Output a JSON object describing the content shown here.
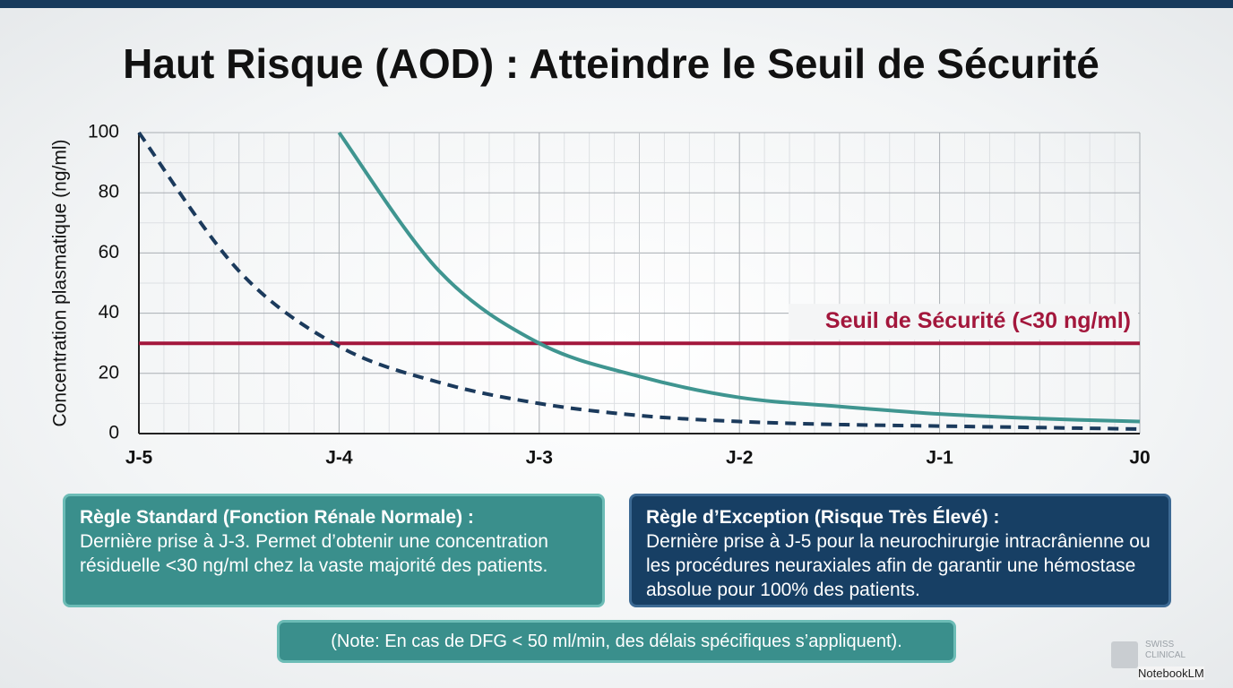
{
  "chart_data": {
    "type": "line",
    "title": "Haut Risque (AOD) : Atteindre le Seuil de Sécurité",
    "y_label": "Concentration plasmatique (ng/ml)",
    "categories": [
      "J-5",
      null,
      "J-4",
      null,
      "J-3",
      null,
      "J-2",
      null,
      "J-1",
      null,
      "J0"
    ],
    "series": [
      {
        "color": "#1b3a5c",
        "line_style": "dashed",
        "values": [
          100,
          54,
          29,
          17,
          10,
          6,
          4,
          3,
          2.5,
          2,
          1.5
        ]
      },
      {
        "color": "#3f9590",
        "line_style": "solid",
        "values": [
          null,
          null,
          100,
          54,
          30,
          19,
          12,
          9,
          6.5,
          5,
          4
        ]
      }
    ],
    "threshold": {
      "value": 30,
      "label": "Seuil de Sécurité (<30 ng/ml)",
      "color": "#a3173c"
    },
    "ylim": [
      0,
      100
    ],
    "yticks": [
      0,
      20,
      40,
      60,
      80,
      100
    ],
    "grid": true
  },
  "boxes": [
    {
      "title": "Règle Standard (Fonction Rénale Normale) :",
      "text": "Dernière prise à J-3. Permet d’obtenir une concentration résiduelle <30 ng/ml chez la vaste majorité des patients."
    },
    {
      "title": "Règle d’Exception (Risque Très Élevé) :",
      "text": "Dernière prise à J-5 pour la neurochirurgie intracrânienne ou les procédures neuraxiales afin de garantir une hémostase absolue pour 100% des patients."
    }
  ],
  "note": "(Note: En cas de DFG < 50 ml/min, des délais spécifiques s’appliquent).",
  "watermark": {
    "line1": "SWISS",
    "line2": "CLINICAL",
    "brand": "NotebookLM"
  }
}
